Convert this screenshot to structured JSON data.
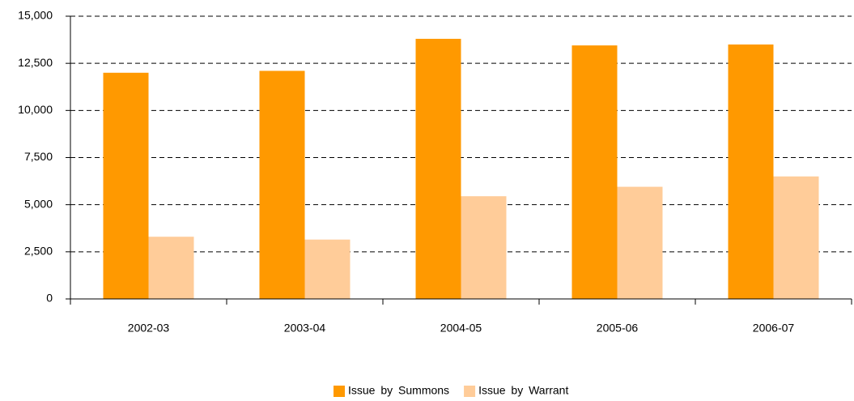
{
  "chart_data": {
    "type": "bar",
    "categories": [
      "2002-03",
      "2003-04",
      "2004-05",
      "2005-06",
      "2006-07"
    ],
    "series": [
      {
        "name": "Issue by Summons",
        "color": "#ff9900",
        "values": [
          12000,
          12100,
          13800,
          13450,
          13500
        ]
      },
      {
        "name": "Issue by Warrant",
        "color": "#ffcc99",
        "values": [
          3300,
          3150,
          5450,
          5950,
          6500
        ]
      }
    ],
    "ylim": [
      0,
      15000
    ],
    "yticks": [
      0,
      {
        "value": 2500,
        "label": "2,500"
      },
      {
        "value": 5000,
        "label": "5,000"
      },
      {
        "value": 7500,
        "label": "7,500"
      },
      {
        "value": 10000,
        "label": "10,000"
      },
      {
        "value": 12500,
        "label": "12,500"
      },
      {
        "value": 15000,
        "label": "15,000"
      }
    ],
    "grid": true,
    "legend": "bottom"
  }
}
